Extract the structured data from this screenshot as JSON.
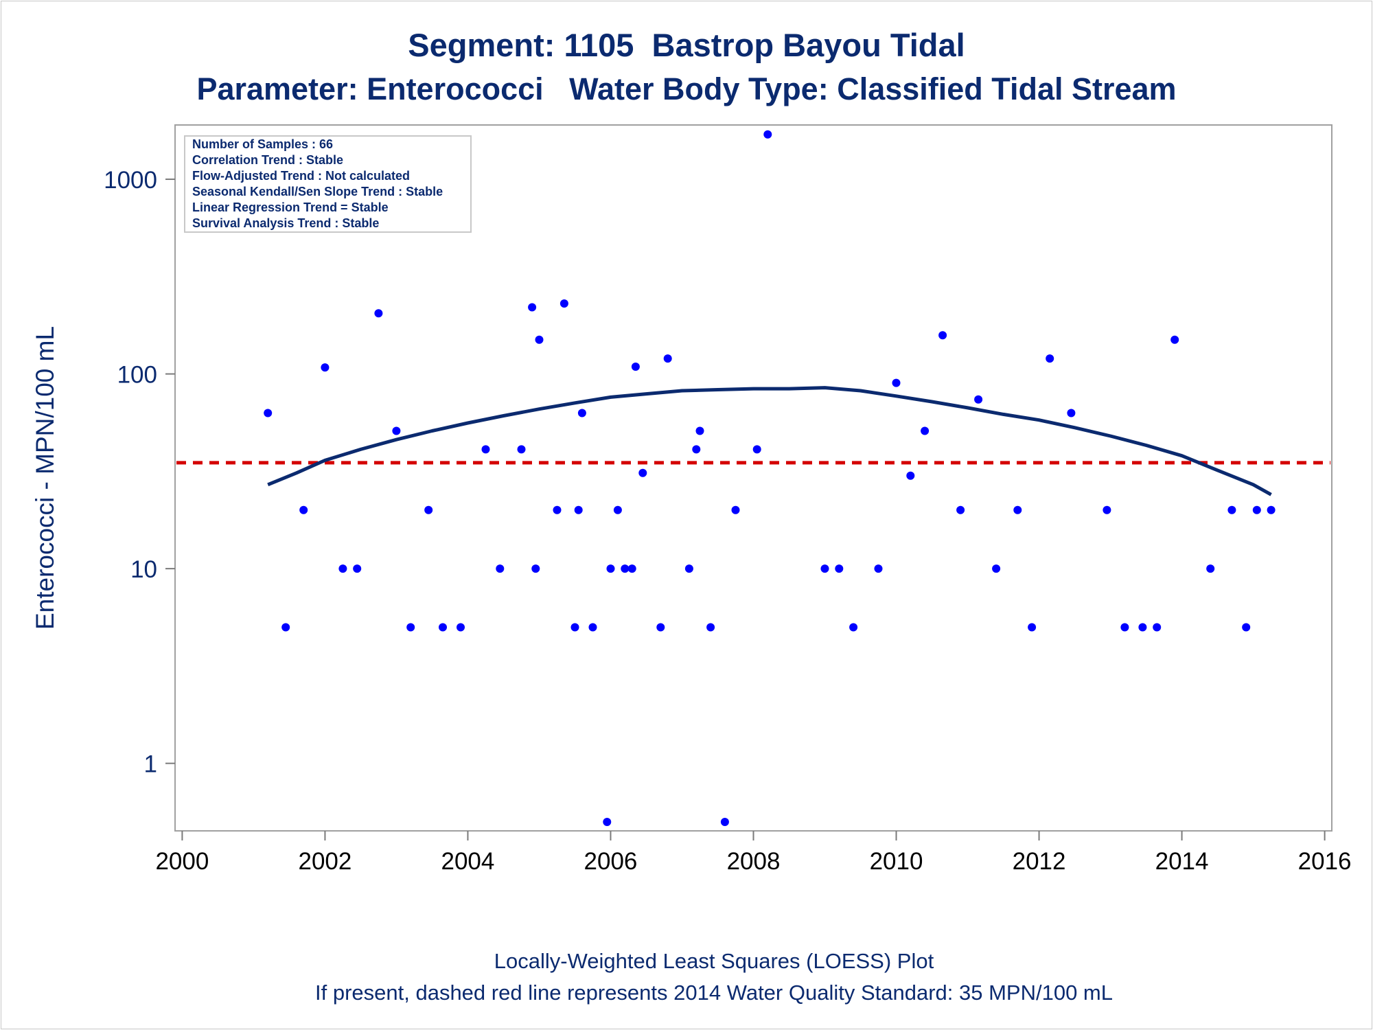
{
  "titles": {
    "line1": "Segment: 1105  Bastrop Bayou Tidal",
    "line2": "Parameter: Enterococci   Water Body Type: Classified Tidal Stream"
  },
  "footnotes": {
    "line1": "Locally-Weighted Least Squares (LOESS) Plot",
    "line2": "If present, dashed red line represents 2014 Water Quality Standard: 35 MPN/100 mL"
  },
  "stats_box": [
    "Number of Samples : 66",
    "Correlation Trend : Stable",
    "Flow-Adjusted Trend : Not calculated",
    "Seasonal Kendall/Sen Slope Trend : Stable",
    "Linear Regression Trend = Stable",
    "Survival Analysis Trend : Stable"
  ],
  "colors": {
    "text": "#0b2a6f",
    "points": "#0000ff",
    "loess": "#0b2a6f",
    "standard": "#d40000",
    "frame": "#a0a0a0"
  },
  "chart_data": {
    "type": "scatter",
    "title": "Segment: 1105  Bastrop Bayou Tidal",
    "subtitle": "Parameter: Enterococci   Water Body Type: Classified Tidal Stream",
    "xlabel": "",
    "ylabel": "Enterococci - MPN/100 mL",
    "yscale": "log",
    "xlim": [
      1999.9,
      2016.1
    ],
    "ylim": [
      0.45,
      1900
    ],
    "xticks": [
      2000,
      2002,
      2004,
      2006,
      2008,
      2010,
      2012,
      2014,
      2016
    ],
    "yticks": [
      1,
      10,
      100,
      1000
    ],
    "grid": false,
    "standard_line": {
      "value": 35,
      "style": "dashed"
    },
    "points": [
      [
        2001.2,
        63
      ],
      [
        2001.45,
        5
      ],
      [
        2001.7,
        20
      ],
      [
        2002.0,
        108
      ],
      [
        2002.25,
        10
      ],
      [
        2002.45,
        10
      ],
      [
        2002.75,
        205
      ],
      [
        2003.0,
        51
      ],
      [
        2003.2,
        5
      ],
      [
        2003.45,
        20
      ],
      [
        2003.65,
        5
      ],
      [
        2003.9,
        5
      ],
      [
        2004.25,
        41
      ],
      [
        2004.45,
        10
      ],
      [
        2004.75,
        41
      ],
      [
        2004.9,
        220
      ],
      [
        2004.95,
        10
      ],
      [
        2005.0,
        150
      ],
      [
        2005.25,
        20
      ],
      [
        2005.35,
        230
      ],
      [
        2005.5,
        5
      ],
      [
        2005.55,
        20
      ],
      [
        2005.6,
        63
      ],
      [
        2005.75,
        5
      ],
      [
        2005.95,
        0.5
      ],
      [
        2006.0,
        10
      ],
      [
        2006.1,
        20
      ],
      [
        2006.2,
        10
      ],
      [
        2006.3,
        10
      ],
      [
        2006.35,
        109
      ],
      [
        2006.45,
        31
      ],
      [
        2006.7,
        5
      ],
      [
        2006.8,
        120
      ],
      [
        2007.1,
        10
      ],
      [
        2007.2,
        41
      ],
      [
        2007.25,
        51
      ],
      [
        2007.4,
        5
      ],
      [
        2007.6,
        0.5
      ],
      [
        2007.75,
        20
      ],
      [
        2008.05,
        41
      ],
      [
        2008.2,
        1700
      ],
      [
        2009.0,
        10
      ],
      [
        2009.2,
        10
      ],
      [
        2009.4,
        5
      ],
      [
        2009.75,
        10
      ],
      [
        2010.0,
        90
      ],
      [
        2010.2,
        30
      ],
      [
        2010.4,
        51
      ],
      [
        2010.65,
        158
      ],
      [
        2010.9,
        20
      ],
      [
        2011.15,
        74
      ],
      [
        2011.4,
        10
      ],
      [
        2011.7,
        20
      ],
      [
        2011.9,
        5
      ],
      [
        2012.15,
        120
      ],
      [
        2012.45,
        63
      ],
      [
        2012.95,
        20
      ],
      [
        2013.2,
        5
      ],
      [
        2013.45,
        5
      ],
      [
        2013.65,
        5
      ],
      [
        2013.9,
        150
      ],
      [
        2014.4,
        10
      ],
      [
        2014.7,
        20
      ],
      [
        2014.9,
        5
      ],
      [
        2015.05,
        20
      ],
      [
        2015.25,
        20
      ]
    ],
    "loess": [
      [
        2001.2,
        27
      ],
      [
        2001.6,
        31
      ],
      [
        2002.0,
        36
      ],
      [
        2002.5,
        41
      ],
      [
        2003.0,
        46
      ],
      [
        2003.5,
        51
      ],
      [
        2004.0,
        56
      ],
      [
        2004.5,
        61
      ],
      [
        2005.0,
        66
      ],
      [
        2005.5,
        71
      ],
      [
        2006.0,
        76
      ],
      [
        2006.5,
        79
      ],
      [
        2007.0,
        82
      ],
      [
        2007.5,
        83
      ],
      [
        2008.0,
        84
      ],
      [
        2008.5,
        84
      ],
      [
        2009.0,
        85
      ],
      [
        2009.5,
        82
      ],
      [
        2010.0,
        77
      ],
      [
        2010.5,
        72
      ],
      [
        2011.0,
        67
      ],
      [
        2011.5,
        62
      ],
      [
        2012.0,
        58
      ],
      [
        2012.5,
        53
      ],
      [
        2013.0,
        48
      ],
      [
        2013.5,
        43
      ],
      [
        2014.0,
        38
      ],
      [
        2014.5,
        32
      ],
      [
        2015.0,
        27
      ],
      [
        2015.25,
        24
      ]
    ]
  }
}
